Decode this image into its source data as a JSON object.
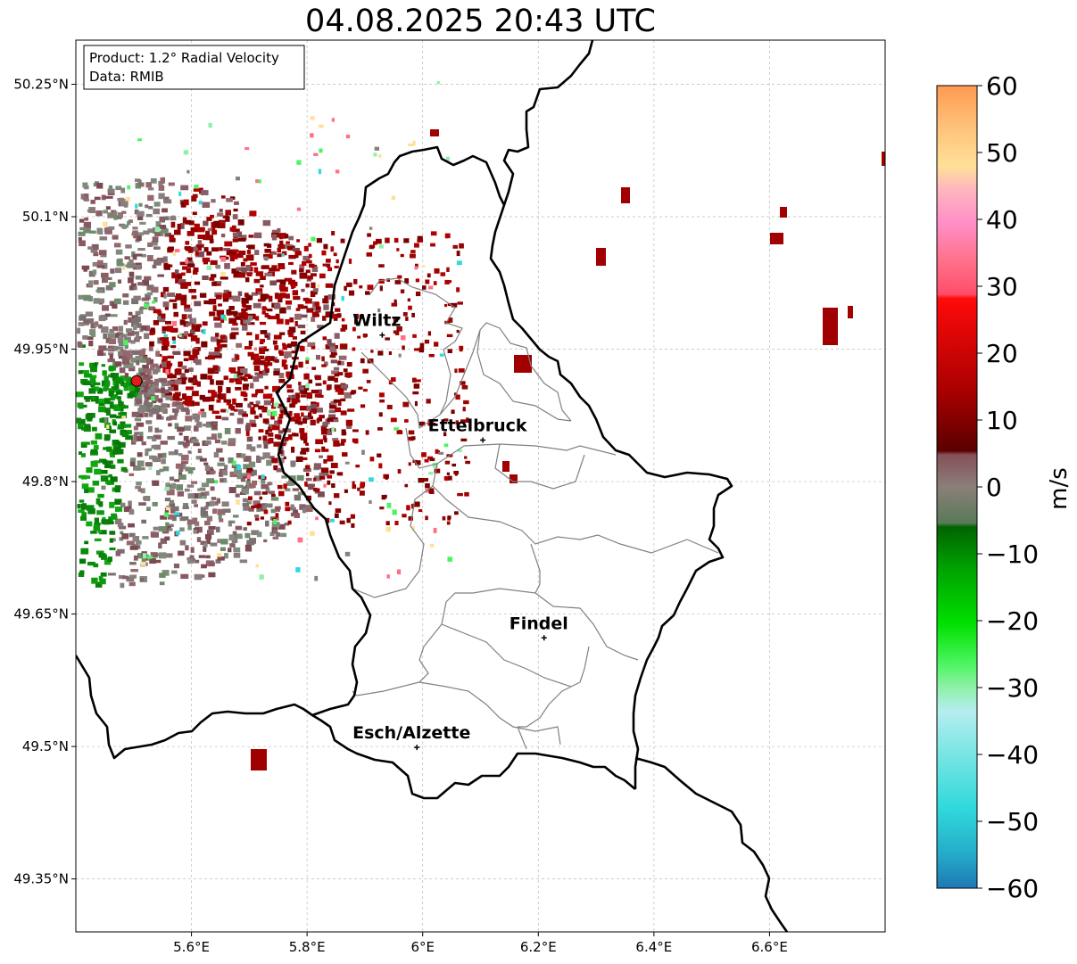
{
  "title": "04.08.2025 20:43 UTC",
  "info": {
    "product": "Product: 1.2° Radial Velocity",
    "data": "Data: RMIB"
  },
  "lat_ticks": [
    "50.25°N",
    "50.1°N",
    "49.95°N",
    "49.8°N",
    "49.65°N",
    "49.5°N",
    "49.35°N"
  ],
  "lon_ticks": [
    "5.6°E",
    "5.8°E",
    "6°E",
    "6.2°E",
    "6.4°E",
    "6.6°E"
  ],
  "cities": [
    {
      "name": "Wiltz",
      "lon": 5.93,
      "lat": 49.966
    },
    {
      "name": "Ettelbruck",
      "lon": 6.104,
      "lat": 49.847
    },
    {
      "name": "Findel",
      "lon": 6.21,
      "lat": 49.623
    },
    {
      "name": "Esch/Alzette",
      "lon": 5.99,
      "lat": 49.499
    }
  ],
  "radar_site": {
    "lon": 5.505,
    "lat": 49.914
  },
  "colorbar": {
    "unit": "m/s",
    "ticks": [
      "60",
      "50",
      "40",
      "30",
      "20",
      "10",
      "0",
      "−10",
      "−20",
      "−30",
      "−40",
      "−50",
      "−60"
    ],
    "min": -60,
    "max": 60
  },
  "colors": {
    "frame": "#000000",
    "grid": "#bbbbbb",
    "radar_site": "#e41a1c"
  }
}
